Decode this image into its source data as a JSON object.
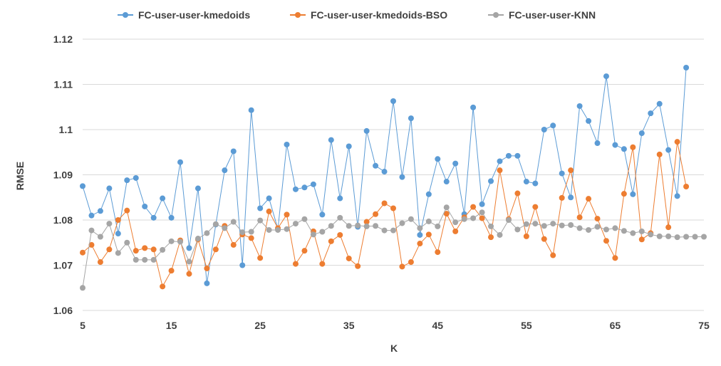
{
  "chart_data": {
    "type": "line",
    "xlabel": "K",
    "ylabel": "RMSE",
    "xlim": [
      5,
      75
    ],
    "ylim": [
      1.06,
      1.12
    ],
    "xticks": [
      "5",
      "15",
      "25",
      "35",
      "45",
      "55",
      "65",
      "75"
    ],
    "yticks": [
      "1.06",
      "1.07",
      "1.08",
      "1.09",
      "1.1",
      "1.11",
      "1.12"
    ],
    "grid": "horizontal",
    "legend": "top",
    "series": [
      {
        "name": "FC-user-user-kmedoids",
        "color": "#5b9bd5",
        "x": [
          5,
          6,
          7,
          8,
          9,
          10,
          11,
          12,
          13,
          14,
          15,
          16,
          17,
          18,
          19,
          20,
          21,
          22,
          23,
          24,
          25,
          26,
          27,
          28,
          29,
          30,
          31,
          32,
          33,
          34,
          35,
          36,
          37,
          38,
          39,
          40,
          41,
          42,
          43,
          44,
          45,
          46,
          47,
          48,
          49,
          50,
          51,
          52,
          53,
          54,
          55,
          56,
          57,
          58,
          59,
          60,
          61,
          62,
          63,
          64,
          65,
          66,
          67,
          68,
          69,
          70,
          71,
          72,
          73
        ],
        "values": [
          1.0875,
          1.081,
          1.082,
          1.087,
          1.077,
          1.0888,
          1.0893,
          1.083,
          1.0805,
          1.0848,
          1.0805,
          1.0928,
          1.0738,
          1.087,
          1.066,
          1.079,
          1.091,
          1.0952,
          1.07,
          1.1043,
          1.0826,
          1.0848,
          1.078,
          1.0967,
          1.0868,
          1.0872,
          1.0879,
          1.0812,
          1.0977,
          1.0848,
          1.0963,
          1.0785,
          1.0997,
          1.092,
          1.0907,
          1.1063,
          1.0895,
          1.1025,
          1.0767,
          1.0857,
          1.0935,
          1.0885,
          1.0925,
          1.0813,
          1.1049,
          1.0835,
          1.0886,
          1.093,
          1.0942,
          1.0942,
          1.0885,
          1.0881,
          1.1,
          1.1009,
          1.0903,
          1.085,
          1.1052,
          1.1019,
          1.097,
          1.1118,
          1.0966,
          1.0957,
          1.0857,
          1.0992,
          1.1036,
          1.1057,
          1.0955,
          1.0853,
          1.1137
        ]
      },
      {
        "name": "FC-user-user-kmedoids-BSO",
        "color": "#ed7d31",
        "x": [
          5,
          6,
          7,
          8,
          9,
          10,
          11,
          12,
          13,
          14,
          15,
          16,
          17,
          18,
          19,
          20,
          21,
          22,
          23,
          24,
          25,
          26,
          27,
          28,
          29,
          30,
          31,
          32,
          33,
          34,
          35,
          36,
          37,
          38,
          39,
          40,
          41,
          42,
          43,
          44,
          45,
          46,
          47,
          48,
          49,
          50,
          51,
          52,
          53,
          54,
          55,
          56,
          57,
          58,
          59,
          60,
          61,
          62,
          63,
          64,
          65,
          66,
          67,
          68,
          69,
          70,
          71,
          72,
          73
        ],
        "values": [
          1.0728,
          1.0745,
          1.0707,
          1.0735,
          1.08,
          1.0821,
          1.0732,
          1.0738,
          1.0735,
          1.0653,
          1.0688,
          1.0755,
          1.0681,
          1.0757,
          1.0693,
          1.0735,
          1.0787,
          1.0745,
          1.0768,
          1.076,
          1.0716,
          1.0819,
          1.0782,
          1.0812,
          1.0703,
          1.0732,
          1.0775,
          1.0703,
          1.0753,
          1.0767,
          1.0715,
          1.0698,
          1.0796,
          1.0813,
          1.0837,
          1.0826,
          1.0697,
          1.0707,
          1.0748,
          1.0768,
          1.0729,
          1.0814,
          1.0775,
          1.0806,
          1.0829,
          1.0804,
          1.0762,
          1.091,
          1.0802,
          1.0859,
          1.0764,
          1.0829,
          1.0758,
          1.0722,
          1.0849,
          1.091,
          1.0806,
          1.0847,
          1.0803,
          1.0754,
          1.0716,
          1.0858,
          1.0961,
          1.0757,
          1.0771,
          1.0945,
          1.0784,
          1.0973,
          1.0874
        ]
      },
      {
        "name": "FC-user-user-KNN",
        "color": "#a5a5a5",
        "x": [
          5,
          6,
          7,
          8,
          9,
          10,
          11,
          12,
          13,
          14,
          15,
          16,
          17,
          18,
          19,
          20,
          21,
          22,
          23,
          24,
          25,
          26,
          27,
          28,
          29,
          30,
          31,
          32,
          33,
          34,
          35,
          36,
          37,
          38,
          39,
          40,
          41,
          42,
          43,
          44,
          45,
          46,
          47,
          48,
          49,
          50,
          51,
          52,
          53,
          54,
          55,
          56,
          57,
          58,
          59,
          60,
          61,
          62,
          63,
          64,
          65,
          66,
          67,
          68,
          69,
          70,
          71,
          72,
          73,
          74,
          75
        ],
        "values": [
          1.065,
          1.0777,
          1.0763,
          1.0792,
          1.0727,
          1.075,
          1.0712,
          1.0712,
          1.0712,
          1.0734,
          1.0753,
          1.0752,
          1.0708,
          1.0759,
          1.0771,
          1.0791,
          1.0782,
          1.0796,
          1.0773,
          1.0774,
          1.0799,
          1.0778,
          1.0778,
          1.078,
          1.0792,
          1.0802,
          1.0768,
          1.0774,
          1.0787,
          1.0805,
          1.0787,
          1.0788,
          1.0786,
          1.0787,
          1.0777,
          1.0777,
          1.0793,
          1.0802,
          1.0782,
          1.0797,
          1.0786,
          1.0828,
          1.0795,
          1.0802,
          1.0804,
          1.0817,
          1.0786,
          1.0767,
          1.08,
          1.0779,
          1.0791,
          1.0792,
          1.0787,
          1.0792,
          1.0788,
          1.0789,
          1.0782,
          1.0778,
          1.0785,
          1.0779,
          1.0782,
          1.0776,
          1.0771,
          1.0775,
          1.0768,
          1.0764,
          1.0764,
          1.0762,
          1.0763,
          1.0763,
          1.0763
        ]
      }
    ]
  }
}
